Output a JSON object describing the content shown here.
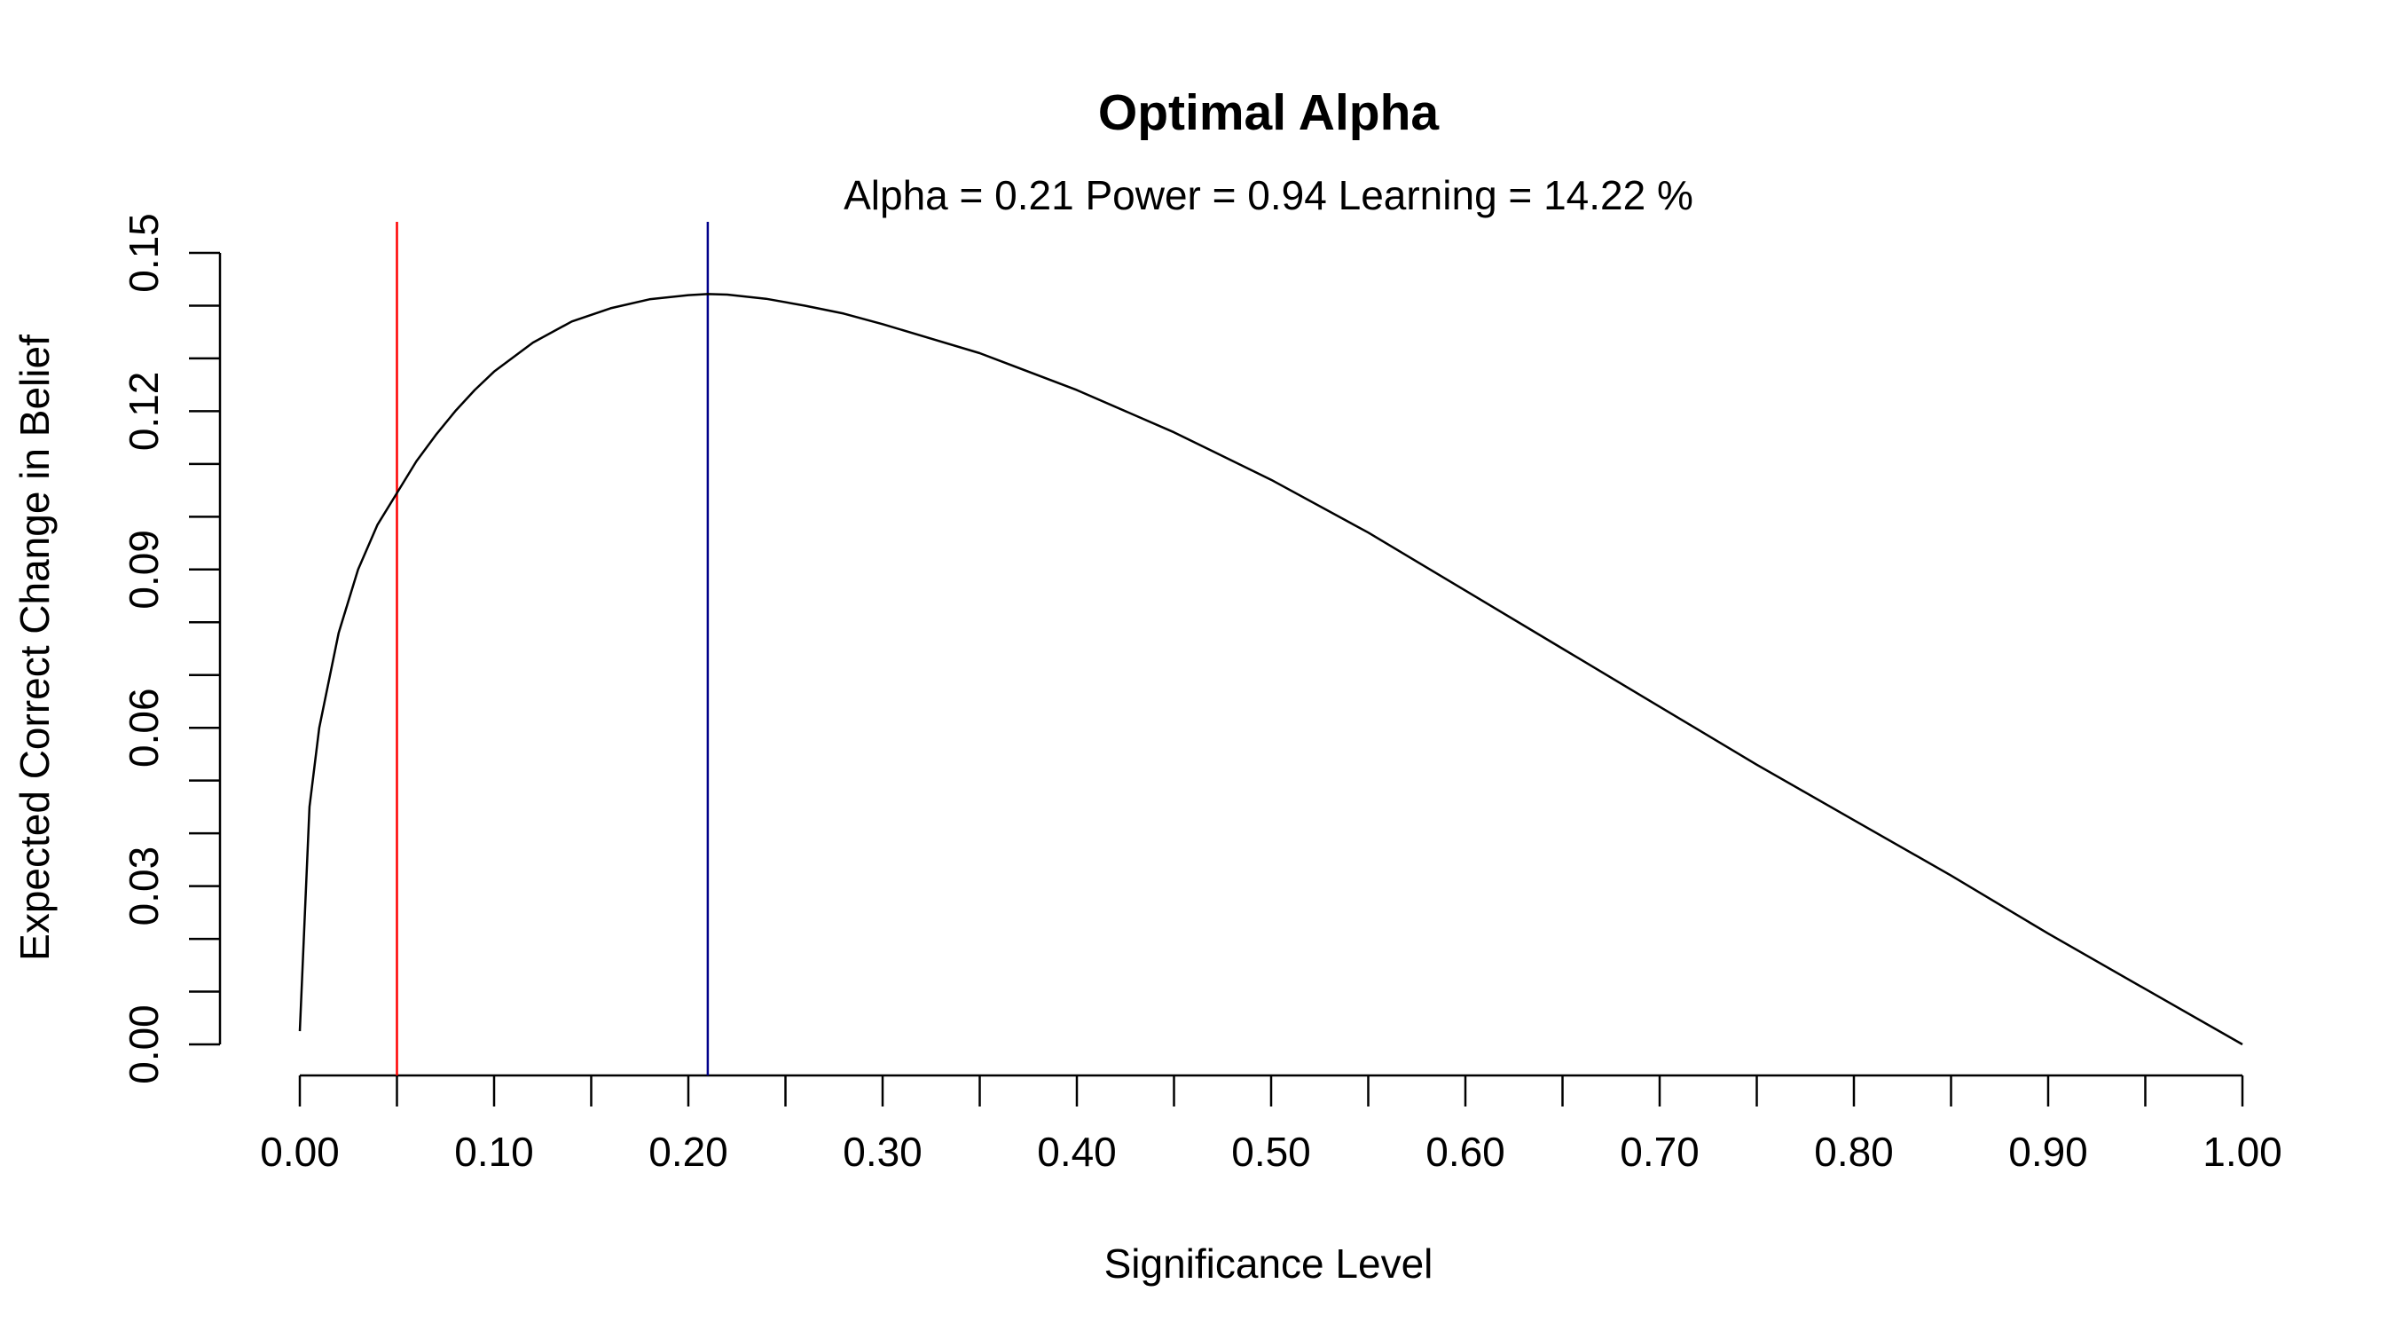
{
  "chart_data": {
    "type": "line",
    "title": "Optimal Alpha",
    "subtitle": "Alpha =  0.21  Power =  0.94 Learning = 14.22 %",
    "xlabel": "Significance Level",
    "ylabel": "Expected Correct Change in Belief",
    "xlim": [
      0,
      1
    ],
    "ylim": [
      0,
      0.15
    ],
    "x_ticks": [
      "0.00",
      "0.10",
      "0.20",
      "0.30",
      "0.40",
      "0.50",
      "0.60",
      "0.70",
      "0.80",
      "0.90",
      "1.00"
    ],
    "x_minor_ticks": [
      0.05,
      0.15,
      0.25,
      0.35,
      0.45,
      0.55,
      0.65,
      0.75,
      0.85,
      0.95
    ],
    "y_ticks": [
      "0.00",
      "0.03",
      "0.06",
      "0.09",
      "0.12",
      "0.15"
    ],
    "y_minor_ticks": [
      0.01,
      0.02,
      0.04,
      0.05,
      0.07,
      0.08,
      0.1,
      0.11,
      0.13,
      0.14
    ],
    "grid": false,
    "legend": "none",
    "series": [
      {
        "color": "#000000",
        "x": [
          0.0,
          0.005,
          0.01,
          0.02,
          0.03,
          0.04,
          0.05,
          0.06,
          0.07,
          0.08,
          0.09,
          0.1,
          0.12,
          0.14,
          0.16,
          0.18,
          0.2,
          0.21,
          0.22,
          0.24,
          0.26,
          0.28,
          0.3,
          0.35,
          0.4,
          0.45,
          0.5,
          0.55,
          0.6,
          0.65,
          0.7,
          0.75,
          0.8,
          0.85,
          0.9,
          0.95,
          1.0
        ],
        "y": [
          0.0025,
          0.045,
          0.06,
          0.078,
          0.09,
          0.0985,
          0.1045,
          0.1105,
          0.1155,
          0.12,
          0.124,
          0.1275,
          0.133,
          0.137,
          0.1395,
          0.1412,
          0.142,
          0.1422,
          0.1421,
          0.1413,
          0.14,
          0.1385,
          0.1365,
          0.131,
          0.124,
          0.116,
          0.107,
          0.097,
          0.086,
          0.075,
          0.064,
          0.053,
          0.0425,
          0.032,
          0.021,
          0.0105,
          0.0
        ]
      }
    ],
    "vlines": [
      {
        "x": 0.05,
        "color": "#ff0000"
      },
      {
        "x": 0.21,
        "color": "#00008b"
      }
    ]
  }
}
